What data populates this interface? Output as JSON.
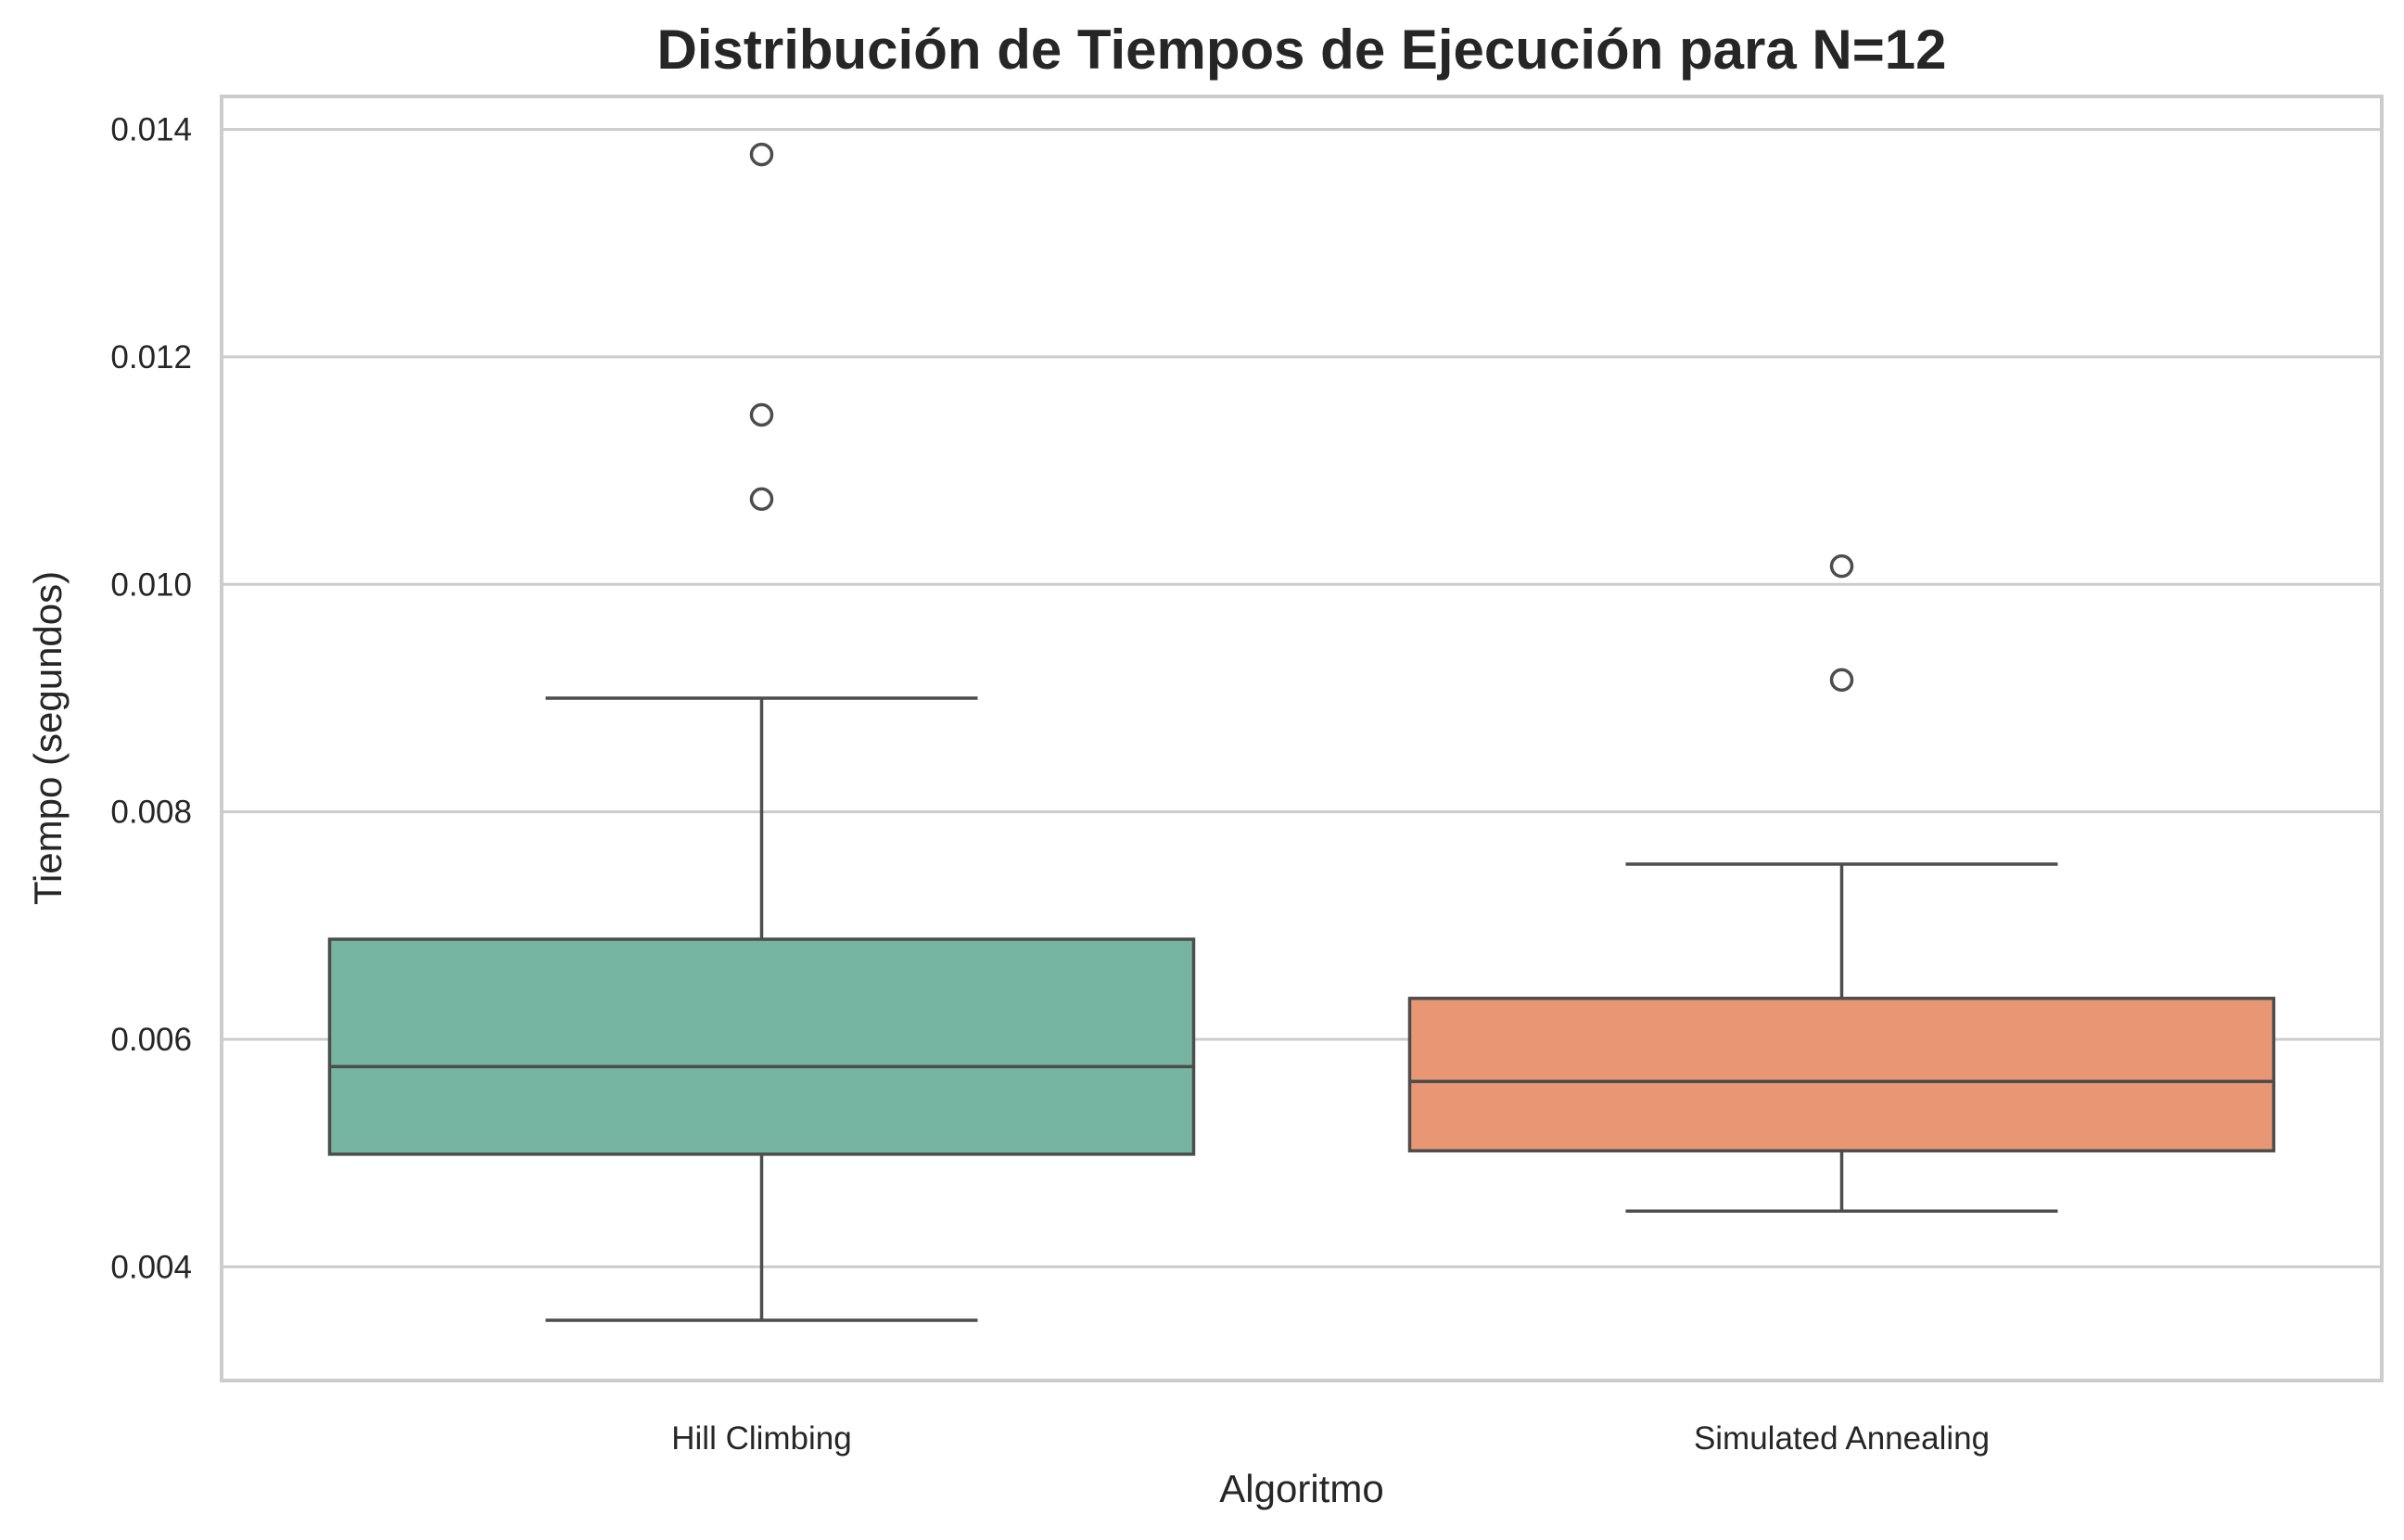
{
  "chart_data": {
    "type": "boxplot",
    "title": "Distribución de Tiempos de Ejecución para N=12",
    "xlabel": "Algoritmo",
    "ylabel": "Tiempo (segundos)",
    "ylim": [
      0.003,
      0.01429
    ],
    "yticks": [
      0.004,
      0.006,
      0.008,
      0.01,
      0.012,
      0.014
    ],
    "ytick_labels": [
      "0.004",
      "0.006",
      "0.008",
      "0.010",
      "0.012",
      "0.014"
    ],
    "grid": "horizontal",
    "categories": [
      "Hill Climbing",
      "Simulated Annealing"
    ],
    "series": [
      {
        "category": "Hill Climbing",
        "color": "#76b5a1",
        "whisker_low": 0.00353,
        "q1": 0.00499,
        "median": 0.00576,
        "q3": 0.00688,
        "whisker_high": 0.009,
        "outliers": [
          0.01378,
          0.01149,
          0.01075
        ]
      },
      {
        "category": "Simulated Annealing",
        "color": "#e99675",
        "whisker_low": 0.00449,
        "q1": 0.00502,
        "median": 0.00563,
        "q3": 0.00636,
        "whisker_high": 0.00754,
        "outliers": [
          0.01016,
          0.00916
        ]
      }
    ]
  }
}
